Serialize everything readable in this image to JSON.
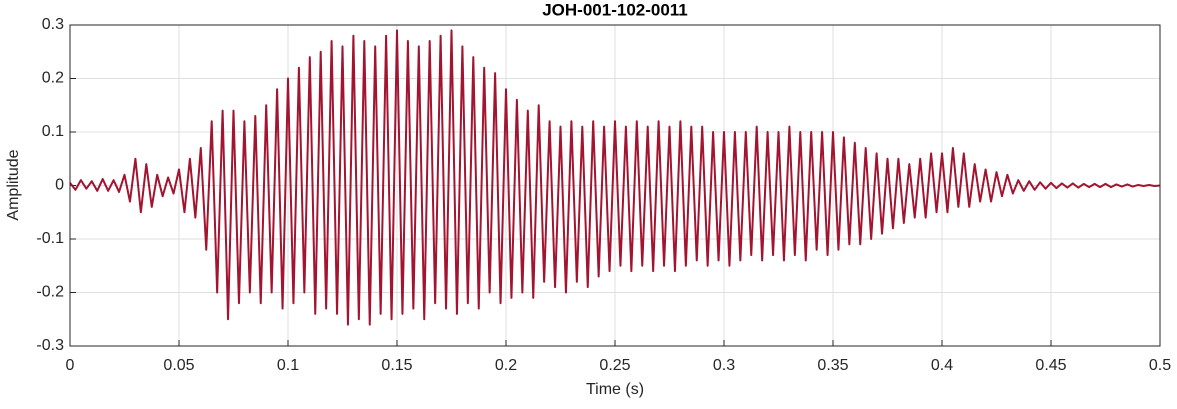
{
  "chart_data": {
    "type": "line",
    "title": "JOH-001-102-0011",
    "xlabel": "Time (s)",
    "ylabel": "Amplitude",
    "x": [
      0,
      0.0025,
      0.005,
      0.0075,
      0.01,
      0.0125,
      0.015,
      0.0175,
      0.02,
      0.0225,
      0.025,
      0.0275,
      0.03,
      0.0325,
      0.035,
      0.0375,
      0.04,
      0.0425,
      0.045,
      0.0475,
      0.05,
      0.0525,
      0.055,
      0.0575,
      0.06,
      0.0625,
      0.065,
      0.0675,
      0.07,
      0.0725,
      0.075,
      0.0775,
      0.08,
      0.0825,
      0.085,
      0.0875,
      0.09,
      0.0925,
      0.095,
      0.0975,
      0.1,
      0.1025,
      0.105,
      0.1075,
      0.11,
      0.1125,
      0.115,
      0.1175,
      0.12,
      0.1225,
      0.125,
      0.1275,
      0.13,
      0.1325,
      0.135,
      0.1375,
      0.14,
      0.1425,
      0.145,
      0.1475,
      0.15,
      0.1525,
      0.155,
      0.1575,
      0.16,
      0.1625,
      0.165,
      0.1675,
      0.17,
      0.1725,
      0.175,
      0.1775,
      0.18,
      0.1825,
      0.185,
      0.1875,
      0.19,
      0.1925,
      0.195,
      0.1975,
      0.2,
      0.2025,
      0.205,
      0.2075,
      0.21,
      0.2125,
      0.215,
      0.2175,
      0.22,
      0.2225,
      0.225,
      0.2275,
      0.23,
      0.2325,
      0.235,
      0.2375,
      0.24,
      0.2425,
      0.245,
      0.2475,
      0.25,
      0.2525,
      0.255,
      0.2575,
      0.26,
      0.2625,
      0.265,
      0.2675,
      0.27,
      0.2725,
      0.275,
      0.2775,
      0.28,
      0.2825,
      0.285,
      0.2875,
      0.29,
      0.2925,
      0.295,
      0.2975,
      0.3,
      0.3025,
      0.305,
      0.3075,
      0.31,
      0.3125,
      0.315,
      0.3175,
      0.32,
      0.3225,
      0.325,
      0.3275,
      0.33,
      0.3325,
      0.335,
      0.3375,
      0.34,
      0.3425,
      0.345,
      0.3475,
      0.35,
      0.3525,
      0.355,
      0.3575,
      0.36,
      0.3625,
      0.365,
      0.3675,
      0.37,
      0.3725,
      0.375,
      0.3775,
      0.38,
      0.3825,
      0.385,
      0.3875,
      0.39,
      0.3925,
      0.395,
      0.3975,
      0.4,
      0.4025,
      0.405,
      0.4075,
      0.41,
      0.4125,
      0.415,
      0.4175,
      0.42,
      0.4225,
      0.425,
      0.4275,
      0.43,
      0.4325,
      0.435,
      0.4375,
      0.44,
      0.4425,
      0.445,
      0.4475,
      0.45,
      0.4525,
      0.455,
      0.4575,
      0.46,
      0.4625,
      0.465,
      0.4675,
      0.47,
      0.4725,
      0.475,
      0.4775,
      0.48,
      0.4825,
      0.485,
      0.4875,
      0.49,
      0.4925,
      0.495,
      0.4975,
      0.5
    ],
    "values": [
      0.005,
      -0.008,
      0.01,
      -0.006,
      0.008,
      -0.01,
      0.012,
      -0.01,
      0.01,
      -0.012,
      0.02,
      -0.03,
      0.05,
      -0.05,
      0.04,
      -0.04,
      0.02,
      -0.02,
      0.015,
      -0.015,
      0.03,
      -0.05,
      0.05,
      -0.06,
      0.07,
      -0.12,
      0.12,
      -0.2,
      0.14,
      -0.25,
      0.14,
      -0.22,
      0.12,
      -0.2,
      0.13,
      -0.22,
      0.15,
      -0.2,
      0.18,
      -0.23,
      0.2,
      -0.22,
      0.22,
      -0.2,
      0.24,
      -0.24,
      0.25,
      -0.23,
      0.27,
      -0.24,
      0.26,
      -0.26,
      0.28,
      -0.25,
      0.27,
      -0.26,
      0.26,
      -0.24,
      0.28,
      -0.25,
      0.29,
      -0.24,
      0.27,
      -0.23,
      0.26,
      -0.25,
      0.27,
      -0.22,
      0.28,
      -0.23,
      0.29,
      -0.24,
      0.26,
      -0.22,
      0.24,
      -0.23,
      0.22,
      -0.2,
      0.21,
      -0.22,
      0.18,
      -0.21,
      0.16,
      -0.2,
      0.14,
      -0.21,
      0.15,
      -0.18,
      0.12,
      -0.19,
      0.11,
      -0.2,
      0.12,
      -0.18,
      0.11,
      -0.19,
      0.12,
      -0.17,
      0.11,
      -0.16,
      0.12,
      -0.15,
      0.11,
      -0.16,
      0.12,
      -0.15,
      0.11,
      -0.16,
      0.12,
      -0.15,
      0.11,
      -0.16,
      0.12,
      -0.15,
      0.11,
      -0.14,
      0.11,
      -0.15,
      0.1,
      -0.14,
      0.1,
      -0.15,
      0.1,
      -0.14,
      0.1,
      -0.13,
      0.11,
      -0.14,
      0.1,
      -0.13,
      0.1,
      -0.14,
      0.11,
      -0.13,
      0.1,
      -0.14,
      0.1,
      -0.12,
      0.1,
      -0.13,
      0.1,
      -0.12,
      0.09,
      -0.11,
      0.08,
      -0.11,
      0.07,
      -0.1,
      0.06,
      -0.09,
      0.05,
      -0.08,
      0.05,
      -0.07,
      0.04,
      -0.06,
      0.05,
      -0.06,
      0.06,
      -0.05,
      0.06,
      -0.05,
      0.07,
      -0.04,
      0.06,
      -0.04,
      0.04,
      -0.03,
      0.03,
      -0.03,
      0.025,
      -0.02,
      0.02,
      -0.015,
      0.01,
      -0.01,
      0.008,
      -0.008,
      0.006,
      -0.006,
      0.005,
      -0.005,
      0.004,
      -0.004,
      0.004,
      -0.004,
      0.003,
      -0.003,
      0.003,
      -0.003,
      0.003,
      -0.003,
      0.002,
      -0.002,
      0.002,
      -0.002,
      0.001,
      -0.001,
      0.001,
      -0.001,
      0
    ],
    "color": "#a2142f",
    "xlim": [
      0,
      0.5
    ],
    "xticks": [
      0,
      0.05,
      0.1,
      0.15,
      0.2,
      0.25,
      0.3,
      0.35,
      0.4,
      0.45,
      0.5
    ],
    "ylim": [
      -0.3,
      0.3
    ],
    "yticks": [
      -0.3,
      -0.2,
      -0.1,
      0,
      0.1,
      0.2,
      0.3
    ],
    "grid": true
  }
}
